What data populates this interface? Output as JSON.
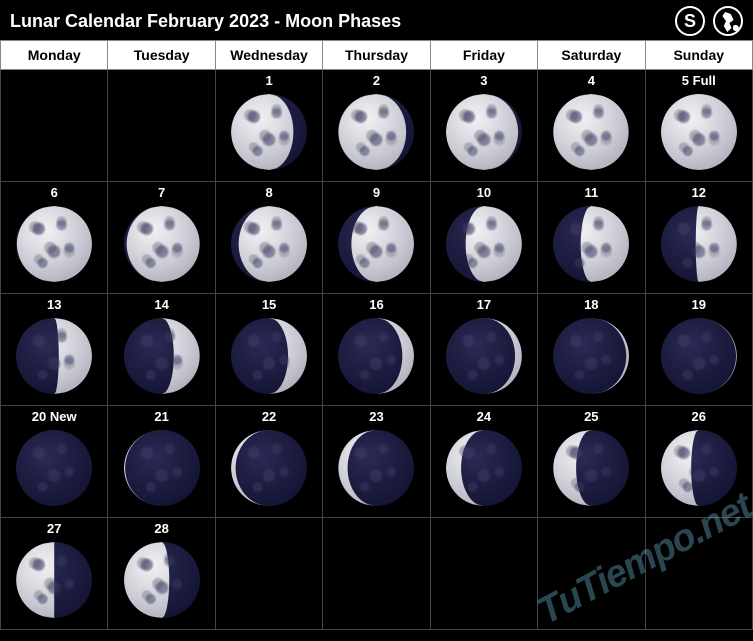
{
  "title": "Lunar Calendar February 2023 - Moon Phases",
  "hemisphere_badge": "S",
  "weekdays": [
    "Monday",
    "Tuesday",
    "Wednesday",
    "Thursday",
    "Friday",
    "Saturday",
    "Sunday"
  ],
  "watermark": "TuTiempo.net",
  "moon_colors": {
    "lit_gradient": [
      "#f2f2f5",
      "#dcdce2",
      "#c8c8d2",
      "#b0b0bc",
      "#9a9aa8"
    ],
    "dark_gradient": [
      "#2a2a55",
      "#1e1e42",
      "#161638",
      "#0d0d28"
    ],
    "cell_border": "#444444",
    "header_bg": "#ffffff",
    "header_fg": "#000000",
    "page_bg": "#000000"
  },
  "grid": [
    [
      {
        "day": null
      },
      {
        "day": null
      },
      {
        "day": "1",
        "phase": 0.82,
        "side": "left"
      },
      {
        "day": "2",
        "phase": 0.89,
        "side": "left"
      },
      {
        "day": "3",
        "phase": 0.95,
        "side": "left"
      },
      {
        "day": "4",
        "phase": 0.99,
        "side": "left"
      },
      {
        "day": "5 Full",
        "phase": 1.0,
        "side": "left"
      }
    ],
    [
      {
        "day": "6",
        "phase": 0.99,
        "side": "right"
      },
      {
        "day": "7",
        "phase": 0.96,
        "side": "right"
      },
      {
        "day": "8",
        "phase": 0.9,
        "side": "right"
      },
      {
        "day": "9",
        "phase": 0.83,
        "side": "right"
      },
      {
        "day": "10",
        "phase": 0.74,
        "side": "right"
      },
      {
        "day": "11",
        "phase": 0.64,
        "side": "right"
      },
      {
        "day": "12",
        "phase": 0.54,
        "side": "right"
      }
    ],
    [
      {
        "day": "13",
        "phase": 0.44,
        "side": "right"
      },
      {
        "day": "14",
        "phase": 0.34,
        "side": "right"
      },
      {
        "day": "15",
        "phase": 0.25,
        "side": "right"
      },
      {
        "day": "16",
        "phase": 0.16,
        "side": "right"
      },
      {
        "day": "17",
        "phase": 0.09,
        "side": "right"
      },
      {
        "day": "18",
        "phase": 0.04,
        "side": "right"
      },
      {
        "day": "19",
        "phase": 0.01,
        "side": "right"
      }
    ],
    [
      {
        "day": "20 New",
        "phase": 0.0,
        "side": "left"
      },
      {
        "day": "21",
        "phase": 0.02,
        "side": "left"
      },
      {
        "day": "22",
        "phase": 0.06,
        "side": "left"
      },
      {
        "day": "23",
        "phase": 0.12,
        "side": "left"
      },
      {
        "day": "24",
        "phase": 0.2,
        "side": "left"
      },
      {
        "day": "25",
        "phase": 0.3,
        "side": "left"
      },
      {
        "day": "26",
        "phase": 0.4,
        "side": "left"
      }
    ],
    [
      {
        "day": "27",
        "phase": 0.5,
        "side": "left"
      },
      {
        "day": "28",
        "phase": 0.6,
        "side": "left"
      },
      {
        "day": null
      },
      {
        "day": null
      },
      {
        "day": null
      },
      {
        "day": null
      },
      {
        "day": null
      }
    ]
  ]
}
